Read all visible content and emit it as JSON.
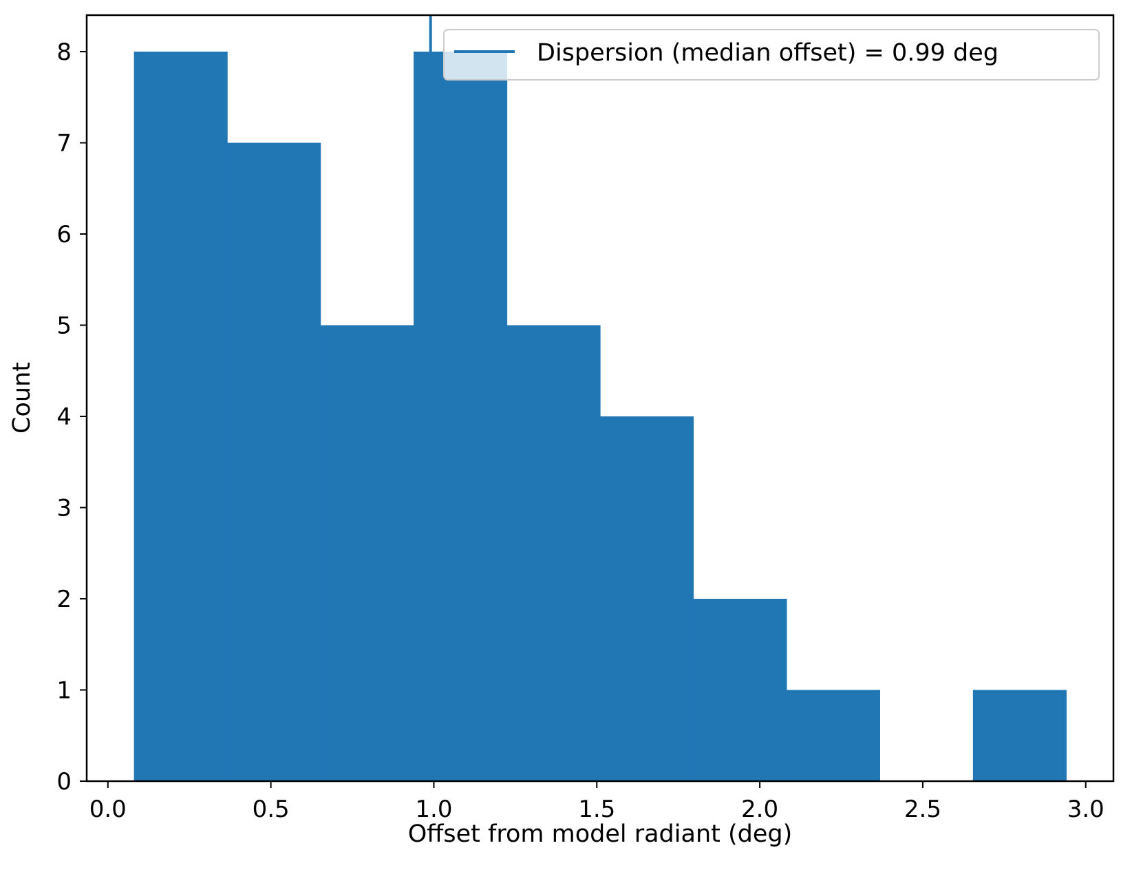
{
  "chart_data": {
    "type": "histogram",
    "title": "",
    "xlabel": "Offset from model radiant (deg)",
    "ylabel": "Count",
    "xlim": [
      -0.065,
      3.085
    ],
    "ylim": [
      0,
      8.4
    ],
    "xticks": [
      0.0,
      0.5,
      1.0,
      1.5,
      2.0,
      2.5,
      3.0
    ],
    "xtick_labels": [
      "0.0",
      "0.5",
      "1.0",
      "1.5",
      "2.0",
      "2.5",
      "3.0"
    ],
    "yticks": [
      0,
      1,
      2,
      3,
      4,
      5,
      6,
      7,
      8
    ],
    "ytick_labels": [
      "0",
      "1",
      "2",
      "3",
      "4",
      "5",
      "6",
      "7",
      "8"
    ],
    "bin_edges": [
      0.08,
      0.366,
      0.652,
      0.938,
      1.224,
      1.51,
      1.796,
      2.082,
      2.368,
      2.654,
      2.94
    ],
    "counts": [
      8,
      7,
      5,
      8,
      5,
      4,
      2,
      1,
      0,
      1
    ],
    "bar_color": "#2077b4",
    "vertical_line": {
      "x": 0.99,
      "color": "#2077b4"
    },
    "legend": {
      "location": "upper right",
      "entries": [
        {
          "label": "Dispersion (median offset) = 0.99 deg",
          "color": "#2077b4"
        }
      ]
    },
    "grid": false
  }
}
